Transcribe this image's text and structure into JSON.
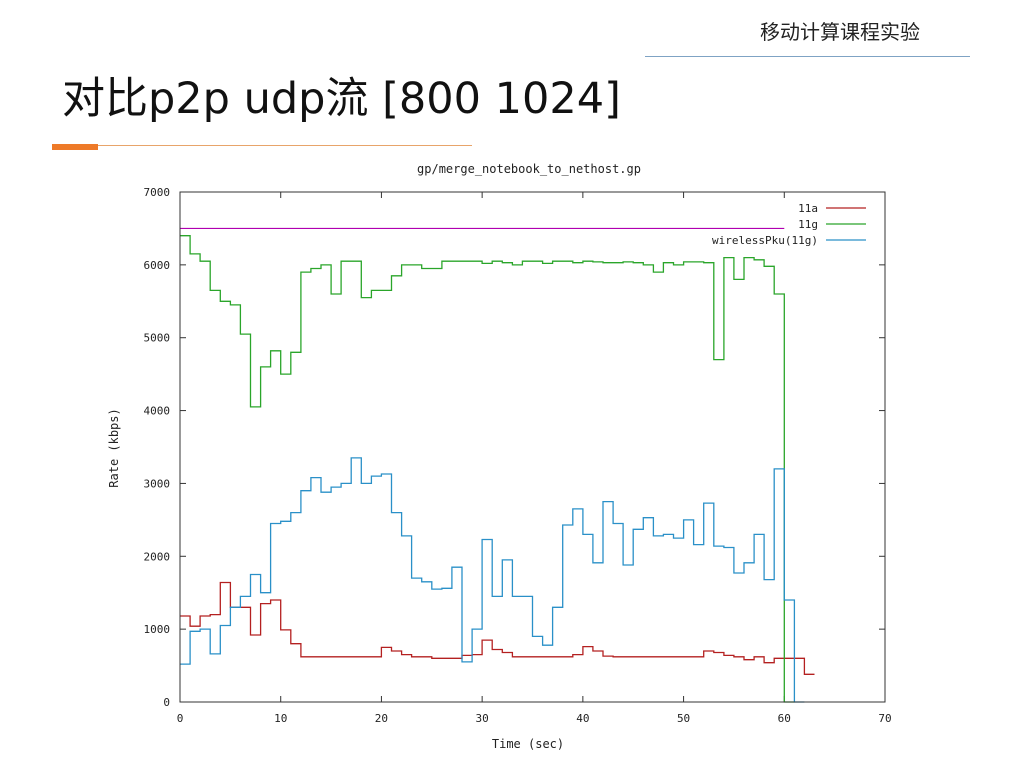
{
  "slide": {
    "course": "移动计算课程实验",
    "title": "对比p2p udp流 [800 1024]"
  },
  "chart_data": {
    "type": "line",
    "step": true,
    "title": "gp/merge_notebook_to_nethost.gp",
    "xlabel": "Time (sec)",
    "ylabel": "Rate (kbps)",
    "xlim": [
      0,
      70
    ],
    "ylim": [
      0,
      7000
    ],
    "xticks": [
      0,
      10,
      20,
      30,
      40,
      50,
      60,
      70
    ],
    "yticks": [
      0,
      1000,
      2000,
      3000,
      4000,
      5000,
      6000,
      7000
    ],
    "legend_position": "top-right",
    "reference_line": {
      "y": 6500,
      "color": "#b000b0"
    },
    "series": [
      {
        "name": "11a",
        "color": "#b42020",
        "x": [
          0,
          1,
          2,
          3,
          4,
          5,
          6,
          7,
          8,
          9,
          10,
          11,
          12,
          13,
          14,
          15,
          16,
          17,
          18,
          19,
          20,
          21,
          22,
          23,
          24,
          25,
          26,
          27,
          28,
          29,
          30,
          31,
          32,
          33,
          34,
          35,
          36,
          37,
          38,
          39,
          40,
          41,
          42,
          43,
          44,
          45,
          46,
          47,
          48,
          49,
          50,
          51,
          52,
          53,
          54,
          55,
          56,
          57,
          58,
          59,
          60,
          61,
          62
        ],
        "values": [
          1180,
          1040,
          1180,
          1200,
          1640,
          1300,
          1300,
          920,
          1350,
          1400,
          990,
          800,
          620,
          620,
          620,
          620,
          620,
          620,
          620,
          620,
          750,
          700,
          650,
          620,
          620,
          600,
          600,
          600,
          640,
          650,
          850,
          720,
          680,
          620,
          620,
          620,
          620,
          620,
          620,
          650,
          760,
          700,
          630,
          620,
          620,
          620,
          620,
          620,
          620,
          620,
          620,
          620,
          700,
          680,
          640,
          620,
          580,
          620,
          540,
          600,
          600,
          600,
          380
        ]
      },
      {
        "name": "11g",
        "color": "#2aa52a",
        "x": [
          0,
          1,
          2,
          3,
          4,
          5,
          6,
          7,
          8,
          9,
          10,
          11,
          12,
          13,
          14,
          15,
          16,
          17,
          18,
          19,
          20,
          21,
          22,
          23,
          24,
          25,
          26,
          27,
          28,
          29,
          30,
          31,
          32,
          33,
          34,
          35,
          36,
          37,
          38,
          39,
          40,
          41,
          42,
          43,
          44,
          45,
          46,
          47,
          48,
          49,
          50,
          51,
          52,
          53,
          54,
          55,
          56,
          57,
          58,
          59,
          60
        ],
        "values": [
          6400,
          6150,
          6050,
          5650,
          5500,
          5450,
          5050,
          4050,
          4600,
          4820,
          4500,
          4800,
          5900,
          5950,
          6000,
          5600,
          6050,
          6050,
          5550,
          5650,
          5650,
          5850,
          6000,
          6000,
          5950,
          5950,
          6050,
          6050,
          6050,
          6050,
          6020,
          6050,
          6030,
          6000,
          6050,
          6050,
          6020,
          6050,
          6050,
          6030,
          6050,
          6040,
          6030,
          6030,
          6040,
          6030,
          6000,
          5900,
          6030,
          6000,
          6040,
          6040,
          6030,
          4700,
          6100,
          5800,
          6100,
          6070,
          5980,
          5600,
          0
        ]
      },
      {
        "name": "wirelessPku(11g)",
        "color": "#2a90c8",
        "x": [
          0,
          1,
          2,
          3,
          4,
          5,
          6,
          7,
          8,
          9,
          10,
          11,
          12,
          13,
          14,
          15,
          16,
          17,
          18,
          19,
          20,
          21,
          22,
          23,
          24,
          25,
          26,
          27,
          28,
          29,
          30,
          31,
          32,
          33,
          34,
          35,
          36,
          37,
          38,
          39,
          40,
          41,
          42,
          43,
          44,
          45,
          46,
          47,
          48,
          49,
          50,
          51,
          52,
          53,
          54,
          55,
          56,
          57,
          58,
          59,
          60,
          61
        ],
        "values": [
          520,
          970,
          1000,
          660,
          1050,
          1300,
          1450,
          1750,
          1500,
          2450,
          2480,
          2600,
          2900,
          3080,
          2880,
          2950,
          3000,
          3350,
          3000,
          3100,
          3130,
          2600,
          2280,
          1700,
          1650,
          1550,
          1560,
          1850,
          550,
          1000,
          2230,
          1450,
          1950,
          1450,
          1450,
          900,
          780,
          1300,
          2430,
          2650,
          2300,
          1910,
          2750,
          2450,
          1880,
          2370,
          2530,
          2280,
          2300,
          2250,
          2500,
          2160,
          2730,
          2140,
          2120,
          1770,
          1910,
          2300,
          1680,
          3200,
          1400,
          0
        ]
      }
    ]
  }
}
